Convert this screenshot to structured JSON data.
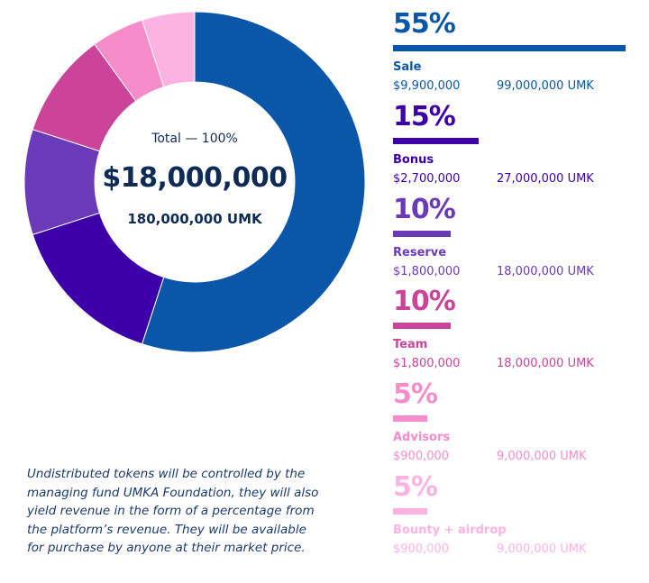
{
  "chart_data": {
    "type": "pie",
    "variant": "donut",
    "center": {
      "total_label": "Total — 100%",
      "total_usd": "$18,000,000",
      "total_umk": "180,000,000 UMK"
    },
    "slices": [
      {
        "name": "Sale",
        "percent": 55,
        "percent_label": "55%",
        "usd": "$9,900,000",
        "umk": "99,000,000 UMK",
        "color": "#0a56a8"
      },
      {
        "name": "Bonus",
        "percent": 15,
        "percent_label": "15%",
        "usd": "$2,700,000",
        "umk": "27,000,000 UMK",
        "color": "#3d00a8"
      },
      {
        "name": "Reserve",
        "percent": 10,
        "percent_label": "10%",
        "usd": "$1,800,000",
        "umk": "18,000,000 UMK",
        "color": "#6a3ab8"
      },
      {
        "name": "Team",
        "percent": 10,
        "percent_label": "10%",
        "usd": "$1,800,000",
        "umk": "18,000,000 UMK",
        "color": "#cc4499"
      },
      {
        "name": "Advisors",
        "percent": 5,
        "percent_label": "5%",
        "usd": "$900,000",
        "umk": "9,000,000 UMK",
        "color": "#f78ccb"
      },
      {
        "name": "Bounty + airdrop",
        "percent": 5,
        "percent_label": "5%",
        "usd": "$900,000",
        "umk": "9,000,000 UMK",
        "color": "#fcb3e2"
      }
    ]
  },
  "note": "Undistributed tokens will be controlled by the managing fund UMKA Foundation, they will also yield revenue in the form of a percentage from the platform’s revenue. They will be available for purchase by anyone at their market price."
}
